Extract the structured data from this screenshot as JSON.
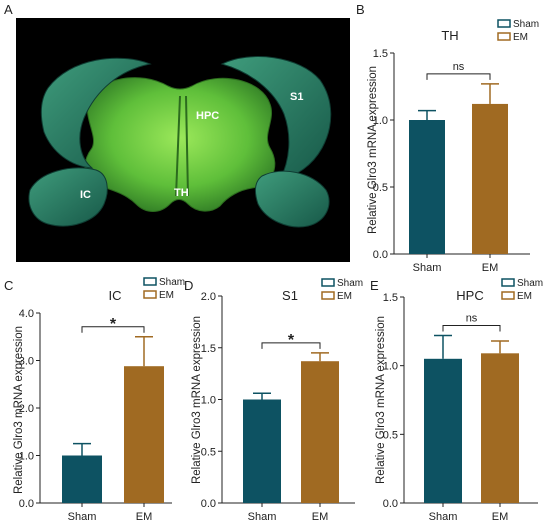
{
  "colors": {
    "sham": "#0d5262",
    "em": "#a06a22",
    "axis": "#222222",
    "brain_bg": "#000000"
  },
  "panel_a": {
    "letter": "A",
    "labels": {
      "s1": "S1",
      "hpc": "HPC",
      "th": "TH",
      "ic": "IC"
    }
  },
  "chart_data": [
    {
      "panel": "B",
      "type": "bar",
      "title": "TH",
      "categories": [
        "Sham",
        "EM"
      ],
      "values": [
        1.0,
        1.12
      ],
      "errors": [
        0.07,
        0.15
      ],
      "ylabel": "Relative Glro3 mRNA expression",
      "ylim": [
        0,
        1.5
      ],
      "yticks": [
        "0.0",
        "0.5",
        "1.0",
        "1.5"
      ],
      "legend": [
        "Sham",
        "EM"
      ],
      "legend_position": "top-right",
      "significance": "ns"
    },
    {
      "panel": "C",
      "type": "bar",
      "title": "IC",
      "categories": [
        "Sham",
        "EM"
      ],
      "values": [
        1.0,
        2.88
      ],
      "errors": [
        0.25,
        0.62
      ],
      "ylabel": "Relative Glro3 mRNA expression",
      "ylim": [
        0,
        4.0
      ],
      "yticks": [
        "0.0",
        "1.0",
        "2.0",
        "3.0",
        "4.0"
      ],
      "legend": [
        "Sham",
        "EM"
      ],
      "legend_position": "top-right",
      "significance": "*"
    },
    {
      "panel": "D",
      "type": "bar",
      "title": "S1",
      "categories": [
        "Sham",
        "EM"
      ],
      "values": [
        1.0,
        1.37
      ],
      "errors": [
        0.06,
        0.08
      ],
      "ylabel": "Relative Glro3 mRNA expression",
      "ylim": [
        0,
        2.0
      ],
      "yticks": [
        "0.0",
        "0.5",
        "1.0",
        "1.5",
        "2.0"
      ],
      "legend": [
        "Sham",
        "EM"
      ],
      "legend_position": "top-right",
      "significance": "*"
    },
    {
      "panel": "E",
      "type": "bar",
      "title": "HPC",
      "categories": [
        "Sham",
        "EM"
      ],
      "values": [
        1.05,
        1.09
      ],
      "errors": [
        0.17,
        0.09
      ],
      "ylabel": "Relative Glro3 mRNA expression",
      "ylim": [
        0,
        1.5
      ],
      "yticks": [
        "0.0",
        "0.5",
        "1.0",
        "1.5"
      ],
      "legend": [
        "Sham",
        "EM"
      ],
      "legend_position": "top-right",
      "significance": "ns"
    }
  ]
}
